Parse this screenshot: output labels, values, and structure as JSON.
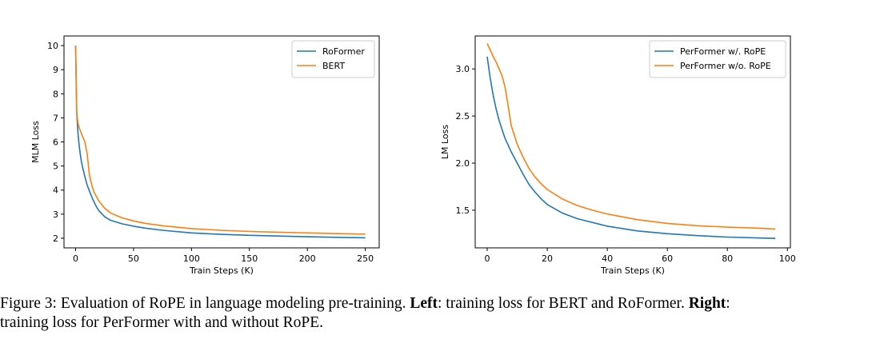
{
  "chart_data": [
    {
      "type": "line",
      "xlabel": "Train Steps (K)",
      "ylabel": "MLM Loss",
      "xlim": [
        -10,
        262
      ],
      "ylim": [
        1.6,
        10.4
      ],
      "xticks": [
        0,
        50,
        100,
        150,
        200,
        250
      ],
      "yticks": [
        2,
        3,
        4,
        5,
        6,
        7,
        8,
        9,
        10
      ],
      "legend": "top-right",
      "grid": false,
      "series": [
        {
          "name": "RoFormer",
          "color": "#1f77b4",
          "x": [
            0,
            0.5,
            1,
            2,
            3,
            4,
            5,
            6,
            8,
            10,
            12,
            15,
            18,
            20,
            25,
            30,
            40,
            50,
            60,
            75,
            100,
            125,
            150,
            175,
            200,
            225,
            250
          ],
          "y": [
            10.0,
            8.5,
            7.2,
            6.4,
            5.9,
            5.5,
            5.2,
            4.95,
            4.55,
            4.2,
            3.95,
            3.6,
            3.3,
            3.15,
            2.9,
            2.75,
            2.6,
            2.5,
            2.42,
            2.33,
            2.22,
            2.16,
            2.12,
            2.09,
            2.06,
            2.04,
            2.02
          ]
        },
        {
          "name": "BERT",
          "color": "#ff7f0e",
          "x": [
            0,
            0.5,
            1,
            2,
            3,
            5,
            8,
            10,
            12,
            14,
            16,
            20,
            25,
            30,
            40,
            50,
            60,
            75,
            100,
            125,
            150,
            175,
            200,
            225,
            250
          ],
          "y": [
            10.0,
            8.8,
            7.2,
            6.8,
            6.6,
            6.35,
            6.0,
            5.5,
            4.6,
            4.2,
            3.9,
            3.55,
            3.25,
            3.05,
            2.85,
            2.72,
            2.62,
            2.52,
            2.4,
            2.33,
            2.28,
            2.25,
            2.22,
            2.19,
            2.17
          ]
        }
      ]
    },
    {
      "type": "line",
      "xlabel": "Train Steps (K)",
      "ylabel": "LM Loss",
      "xlim": [
        -4,
        101
      ],
      "ylim": [
        1.1,
        3.35
      ],
      "xticks": [
        0,
        20,
        40,
        60,
        80,
        100
      ],
      "yticks": [
        1.5,
        2.0,
        2.5,
        3.0
      ],
      "legend": "top-right",
      "grid": false,
      "series": [
        {
          "name": "PerFormer w/. RoPE",
          "color": "#1f77b4",
          "x": [
            0,
            1,
            2,
            3,
            4,
            5,
            6,
            8,
            10,
            12,
            14,
            16,
            18,
            20,
            25,
            30,
            35,
            40,
            50,
            60,
            70,
            80,
            90,
            96
          ],
          "y": [
            3.13,
            2.9,
            2.72,
            2.57,
            2.45,
            2.35,
            2.26,
            2.12,
            2.0,
            1.88,
            1.77,
            1.69,
            1.62,
            1.56,
            1.47,
            1.41,
            1.37,
            1.33,
            1.28,
            1.25,
            1.23,
            1.215,
            1.205,
            1.2
          ]
        },
        {
          "name": "PerFormer w/o. RoPE",
          "color": "#ff7f0e",
          "x": [
            0,
            1,
            2,
            3,
            4,
            5,
            6,
            7,
            8,
            10,
            12,
            14,
            16,
            18,
            20,
            25,
            30,
            35,
            40,
            50,
            60,
            70,
            80,
            90,
            96
          ],
          "y": [
            3.27,
            3.2,
            3.13,
            3.07,
            3.0,
            2.92,
            2.8,
            2.6,
            2.4,
            2.2,
            2.06,
            1.94,
            1.85,
            1.78,
            1.72,
            1.62,
            1.55,
            1.5,
            1.46,
            1.4,
            1.36,
            1.335,
            1.32,
            1.31,
            1.3
          ]
        }
      ]
    }
  ],
  "caption": {
    "prefix": "Figure 3: Evaluation of RoPE in language modeling pre-training. ",
    "left_bold": "Left",
    "left_text": ": training loss for BERT and RoFormer. ",
    "right_bold": "Right",
    "right_text": ":",
    "line2": "training loss for PerFormer with and without RoPE."
  }
}
